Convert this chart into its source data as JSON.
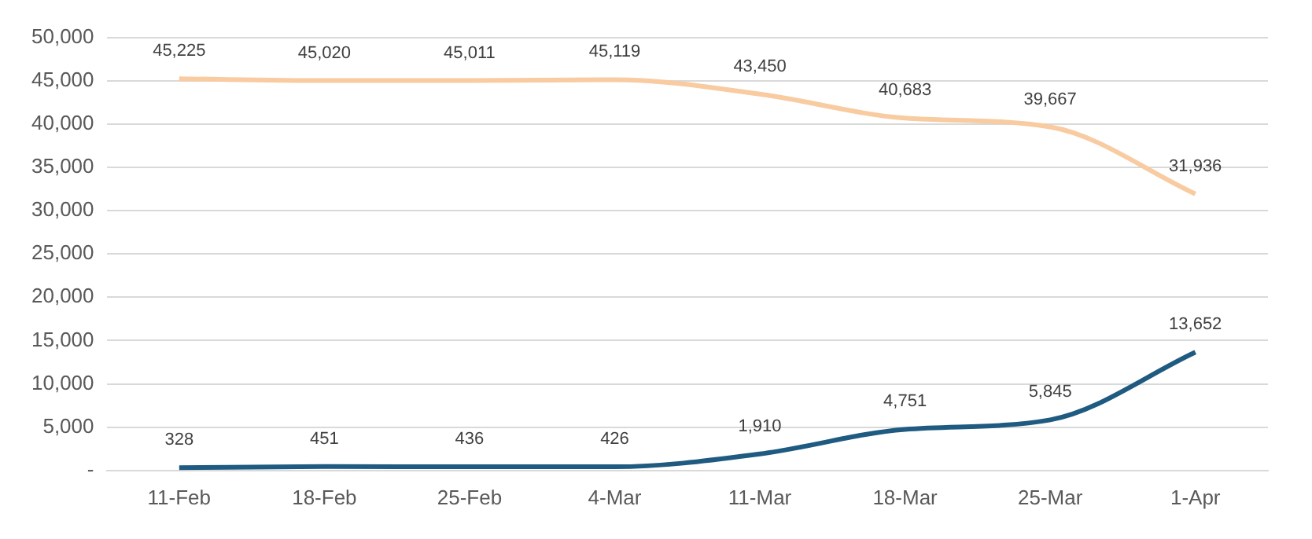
{
  "chart_data": {
    "type": "line",
    "categories": [
      "11-Feb",
      "18-Feb",
      "25-Feb",
      "4-Mar",
      "11-Mar",
      "18-Mar",
      "25-Mar",
      "1-Apr"
    ],
    "series": [
      {
        "color": "#f8cba0",
        "values": [
          45225,
          45020,
          45011,
          45119,
          43450,
          40683,
          39667,
          31936
        ],
        "value_labels": [
          "45,225",
          "45,020",
          "45,011",
          "45,119",
          "43,450",
          "40,683",
          "39,667",
          "31,936"
        ]
      },
      {
        "color": "#1f5b80",
        "values": [
          328,
          451,
          436,
          426,
          1910,
          4751,
          5845,
          13652
        ],
        "value_labels": [
          "328",
          "451",
          "436",
          "426",
          "1,910",
          "4,751",
          "5,845",
          "13,652"
        ]
      }
    ],
    "ylim": [
      0,
      50000
    ],
    "yticks": [
      {
        "value": 0,
        "label": "-"
      },
      {
        "value": 5000,
        "label": "5,000"
      },
      {
        "value": 10000,
        "label": "10,000"
      },
      {
        "value": 15000,
        "label": "15,000"
      },
      {
        "value": 20000,
        "label": "20,000"
      },
      {
        "value": 25000,
        "label": "25,000"
      },
      {
        "value": 30000,
        "label": "30,000"
      },
      {
        "value": 35000,
        "label": "35,000"
      },
      {
        "value": 40000,
        "label": "40,000"
      },
      {
        "value": 45000,
        "label": "45,000"
      },
      {
        "value": 50000,
        "label": "50,000"
      }
    ],
    "grid": "y",
    "legend": false,
    "marker": "none"
  }
}
